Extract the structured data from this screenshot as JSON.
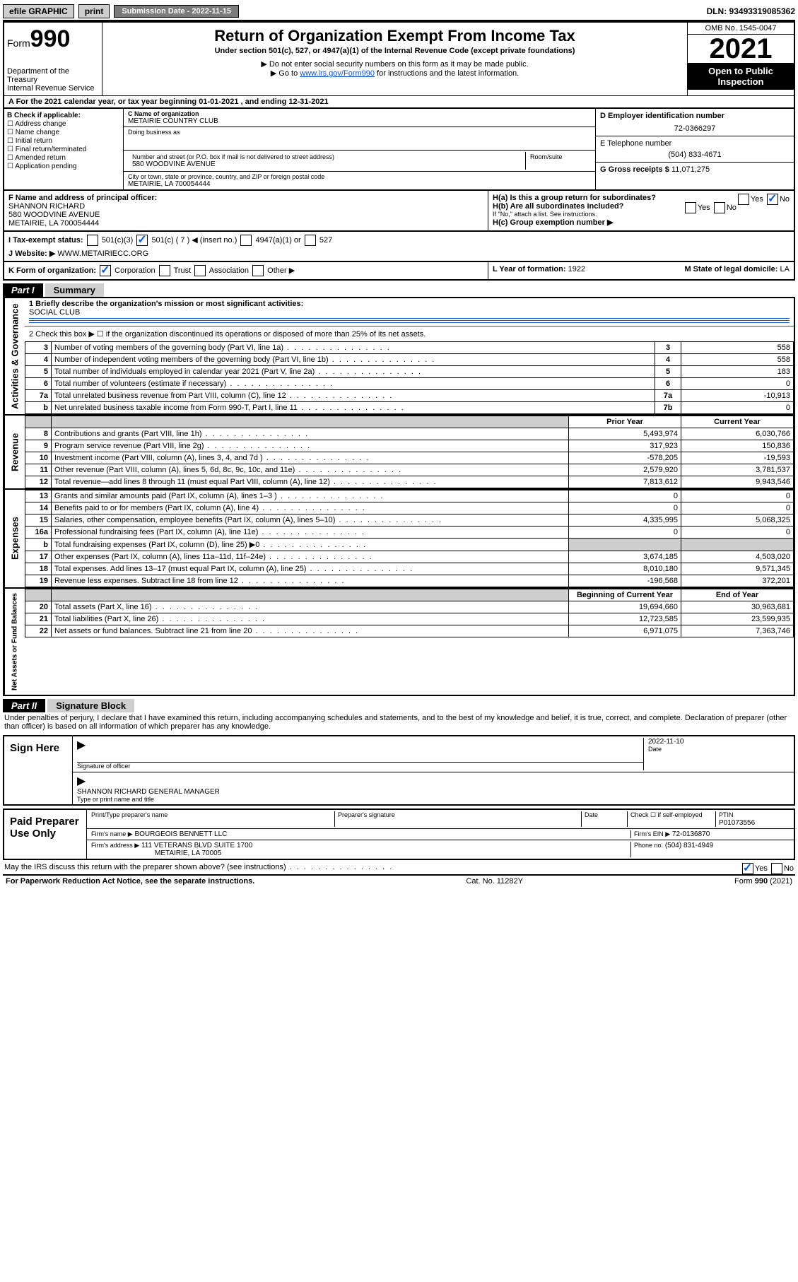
{
  "topbar": {
    "efile": "efile GRAPHIC",
    "print": "print",
    "submission_label": "Submission Date - 2022-11-15",
    "dln": "DLN: 93493319085362"
  },
  "header": {
    "form_prefix": "Form",
    "form_number": "990",
    "dept": "Department of the Treasury",
    "irs": "Internal Revenue Service",
    "title": "Return of Organization Exempt From Income Tax",
    "subtitle": "Under section 501(c), 527, or 4947(a)(1) of the Internal Revenue Code (except private foundations)",
    "note1": "▶ Do not enter social security numbers on this form as it may be made public.",
    "note2_pre": "▶ Go to ",
    "note2_link": "www.irs.gov/Form990",
    "note2_post": " for instructions and the latest information.",
    "omb": "OMB No. 1545-0047",
    "year": "2021",
    "inspection": "Open to Public Inspection"
  },
  "row_a": "A For the 2021 calendar year, or tax year beginning 01-01-2021   , and ending 12-31-2021",
  "checkboxes": {
    "header": "B Check if applicable:",
    "items": [
      "Address change",
      "Name change",
      "Initial return",
      "Final return/terminated",
      "Amended return",
      "Application pending"
    ]
  },
  "namebox": {
    "c_label": "C Name of organization",
    "c_value": "METAIRIE COUNTRY CLUB",
    "dba_label": "Doing business as",
    "street_label": "Number and street (or P.O. box if mail is not delivered to street address)",
    "room_label": "Room/suite",
    "street_value": "580 WOODVINE AVENUE",
    "city_label": "City or town, state or province, country, and ZIP or foreign postal code",
    "city_value": "METAIRIE, LA   700054444",
    "d_label": "D Employer identification number",
    "d_value": "72-0366297",
    "e_label": "E Telephone number",
    "e_value": "(504) 833-4671",
    "g_label": "G Gross receipts $",
    "g_value": "11,071,275"
  },
  "officer": {
    "f_label": "F Name and address of principal officer:",
    "name": "SHANNON RICHARD",
    "street": "580 WOODVINE AVENUE",
    "city": "METAIRIE, LA   700054444"
  },
  "h": {
    "ha": "H(a)  Is this a group return for subordinates?",
    "hb": "H(b)  Are all subordinates included?",
    "hb_note": "If \"No,\" attach a list. See instructions.",
    "hc": "H(c)  Group exemption number ▶",
    "yes": "Yes",
    "no": "No"
  },
  "status": {
    "i_label": "I   Tax-exempt status:",
    "opt1": "501(c)(3)",
    "opt2": "501(c) ( 7 ) ◀ (insert no.)",
    "opt3": "4947(a)(1) or",
    "opt4": "527",
    "j_label": "J   Website: ▶",
    "j_value": "WWW.METAIRIECC.ORG"
  },
  "row_k": {
    "k_label": "K Form of organization:",
    "opts": [
      "Corporation",
      "Trust",
      "Association",
      "Other ▶"
    ],
    "l_label": "L Year of formation:",
    "l_value": "1922",
    "m_label": "M State of legal domicile:",
    "m_value": "LA"
  },
  "part1": {
    "bar": "Part I",
    "title": "Summary"
  },
  "summary": {
    "q1_label": "1  Briefly describe the organization's mission or most significant activities:",
    "q1_value": "SOCIAL CLUB",
    "q2": "2   Check this box ▶ ☐  if the organization discontinued its operations or disposed of more than 25% of its net assets.",
    "rows_gov": [
      {
        "n": "3",
        "t": "Number of voting members of the governing body (Part VI, line 1a)",
        "k": "3",
        "v": "558"
      },
      {
        "n": "4",
        "t": "Number of independent voting members of the governing body (Part VI, line 1b)",
        "k": "4",
        "v": "558"
      },
      {
        "n": "5",
        "t": "Total number of individuals employed in calendar year 2021 (Part V, line 2a)",
        "k": "5",
        "v": "183"
      },
      {
        "n": "6",
        "t": "Total number of volunteers (estimate if necessary)",
        "k": "6",
        "v": "0"
      },
      {
        "n": "7a",
        "t": "Total unrelated business revenue from Part VIII, column (C), line 12",
        "k": "7a",
        "v": "-10,913"
      },
      {
        "n": "b",
        "t": "Net unrelated business taxable income from Form 990-T, Part I, line 11",
        "k": "7b",
        "v": "0"
      }
    ],
    "col_headers": {
      "prior": "Prior Year",
      "current": "Current Year"
    },
    "revenue": [
      {
        "n": "8",
        "t": "Contributions and grants (Part VIII, line 1h)",
        "p": "5,493,974",
        "c": "6,030,766"
      },
      {
        "n": "9",
        "t": "Program service revenue (Part VIII, line 2g)",
        "p": "317,923",
        "c": "150,836"
      },
      {
        "n": "10",
        "t": "Investment income (Part VIII, column (A), lines 3, 4, and 7d )",
        "p": "-578,205",
        "c": "-19,593"
      },
      {
        "n": "11",
        "t": "Other revenue (Part VIII, column (A), lines 5, 6d, 8c, 9c, 10c, and 11e)",
        "p": "2,579,920",
        "c": "3,781,537"
      },
      {
        "n": "12",
        "t": "Total revenue—add lines 8 through 11 (must equal Part VIII, column (A), line 12)",
        "p": "7,813,612",
        "c": "9,943,546"
      }
    ],
    "expenses": [
      {
        "n": "13",
        "t": "Grants and similar amounts paid (Part IX, column (A), lines 1–3 )",
        "p": "0",
        "c": "0"
      },
      {
        "n": "14",
        "t": "Benefits paid to or for members (Part IX, column (A), line 4)",
        "p": "0",
        "c": "0"
      },
      {
        "n": "15",
        "t": "Salaries, other compensation, employee benefits (Part IX, column (A), lines 5–10)",
        "p": "4,335,995",
        "c": "5,068,325"
      },
      {
        "n": "16a",
        "t": "Professional fundraising fees (Part IX, column (A), line 11e)",
        "p": "0",
        "c": "0"
      },
      {
        "n": "b",
        "t": "Total fundraising expenses (Part IX, column (D), line 25) ▶0",
        "p": "",
        "c": "",
        "grey": true
      },
      {
        "n": "17",
        "t": "Other expenses (Part IX, column (A), lines 11a–11d, 11f–24e)",
        "p": "3,674,185",
        "c": "4,503,020"
      },
      {
        "n": "18",
        "t": "Total expenses. Add lines 13–17 (must equal Part IX, column (A), line 25)",
        "p": "8,010,180",
        "c": "9,571,345"
      },
      {
        "n": "19",
        "t": "Revenue less expenses. Subtract line 18 from line 12",
        "p": "-196,568",
        "c": "372,201"
      }
    ],
    "net_headers": {
      "begin": "Beginning of Current Year",
      "end": "End of Year"
    },
    "net": [
      {
        "n": "20",
        "t": "Total assets (Part X, line 16)",
        "p": "19,694,660",
        "c": "30,963,681"
      },
      {
        "n": "21",
        "t": "Total liabilities (Part X, line 26)",
        "p": "12,723,585",
        "c": "23,599,935"
      },
      {
        "n": "22",
        "t": "Net assets or fund balances. Subtract line 21 from line 20",
        "p": "6,971,075",
        "c": "7,363,746"
      }
    ],
    "vlabels": {
      "gov": "Activities & Governance",
      "rev": "Revenue",
      "exp": "Expenses",
      "net": "Net Assets or Fund Balances"
    }
  },
  "part2": {
    "bar": "Part II",
    "title": "Signature Block",
    "declaration": "Under penalties of perjury, I declare that I have examined this return, including accompanying schedules and statements, and to the best of my knowledge and belief, it is true, correct, and complete. Declaration of preparer (other than officer) is based on all information of which preparer has any knowledge.",
    "sign_here": "Sign Here",
    "sig_officer": "Signature of officer",
    "date": "Date",
    "sig_date": "2022-11-10",
    "officer_name": "SHANNON RICHARD  GENERAL MANAGER",
    "type_name": "Type or print name and title",
    "paid": "Paid Preparer Use Only",
    "prep_name_lbl": "Print/Type preparer's name",
    "prep_sig_lbl": "Preparer's signature",
    "check_self": "Check ☐ if self-employed",
    "ptin_lbl": "PTIN",
    "ptin": "P01073556",
    "firm_name_lbl": "Firm's name   ▶",
    "firm_name": "BOURGEOIS BENNETT LLC",
    "firm_ein_lbl": "Firm's EIN ▶",
    "firm_ein": "72-0136870",
    "firm_addr_lbl": "Firm's address ▶",
    "firm_addr1": "111 VETERANS BLVD SUITE 1700",
    "firm_addr2": "METAIRIE, LA   70005",
    "phone_lbl": "Phone no.",
    "phone": "(504) 831-4949",
    "may_irs": "May the IRS discuss this return with the preparer shown above? (see instructions)"
  },
  "footer": {
    "left": "For Paperwork Reduction Act Notice, see the separate instructions.",
    "mid": "Cat. No. 11282Y",
    "right": "Form 990 (2021)"
  },
  "colors": {
    "link": "#0b57d0",
    "grey": "#cfcfcf",
    "darkgrey": "#7a7a7a"
  }
}
